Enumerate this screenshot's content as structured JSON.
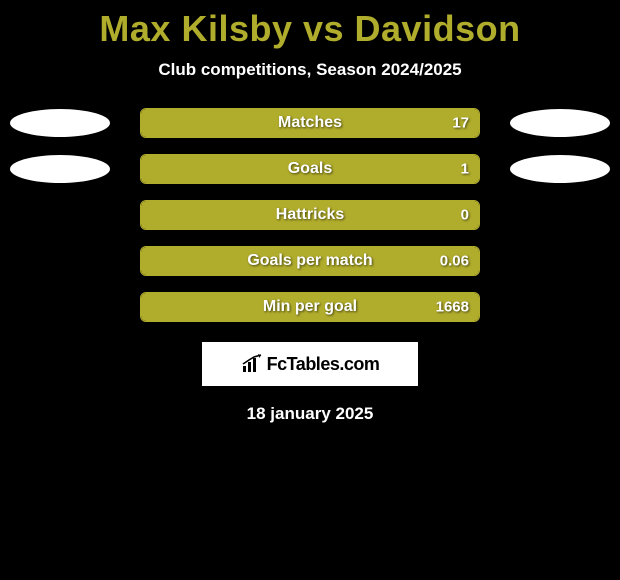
{
  "header": {
    "title": "Max Kilsby vs Davidson",
    "subtitle": "Club competitions, Season 2024/2025",
    "title_color": "#b0ac2c",
    "subtitle_color": "#ffffff"
  },
  "bars": {
    "bar_border_color": "#b0ac2c",
    "bar_fill_color": "#b0ac2c",
    "text_color": "#ffffff",
    "ellipse_color": "#ffffff",
    "items": [
      {
        "label": "Matches",
        "value": "17",
        "fill_pct": 100,
        "show_left_ellipse": true,
        "show_right_ellipse": true
      },
      {
        "label": "Goals",
        "value": "1",
        "fill_pct": 100,
        "show_left_ellipse": true,
        "show_right_ellipse": true
      },
      {
        "label": "Hattricks",
        "value": "0",
        "fill_pct": 100,
        "show_left_ellipse": false,
        "show_right_ellipse": false
      },
      {
        "label": "Goals per match",
        "value": "0.06",
        "fill_pct": 100,
        "show_left_ellipse": false,
        "show_right_ellipse": false
      },
      {
        "label": "Min per goal",
        "value": "1668",
        "fill_pct": 100,
        "show_left_ellipse": false,
        "show_right_ellipse": false
      }
    ]
  },
  "logo": {
    "text": "FcTables.com",
    "background_color": "#ffffff",
    "text_color": "#000000"
  },
  "footer": {
    "date": "18 january 2025",
    "color": "#ffffff"
  },
  "background_color": "#000000"
}
